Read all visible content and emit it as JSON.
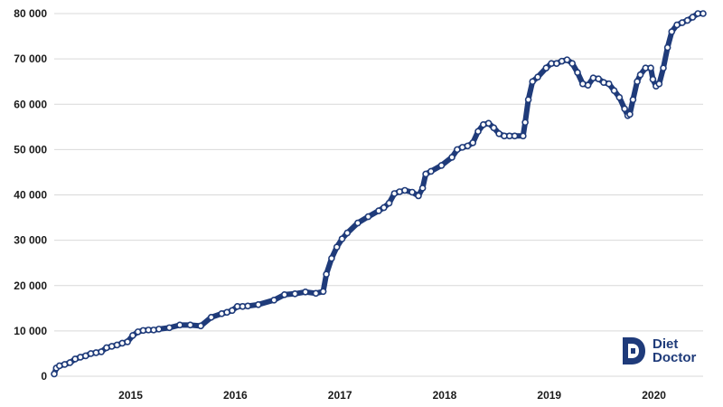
{
  "colors": {
    "series": "#1f3b7a",
    "marker_fill": "#ffffff",
    "grid": "#d9d9d9",
    "text": "#1a1a1a"
  },
  "logo": {
    "line1": "Diet",
    "line2": "Doctor",
    "icon": "diet-doctor-d-logo-icon"
  },
  "chart_data": {
    "type": "line",
    "title": "",
    "xlabel": "",
    "ylabel": "",
    "grid": "horizontal",
    "legend": "none",
    "xlim": [
      2014.3,
      2020.5
    ],
    "ylim": [
      0,
      80000
    ],
    "yticks": [
      0,
      10000,
      20000,
      30000,
      40000,
      50000,
      60000,
      70000,
      80000
    ],
    "ytick_labels": [
      "0",
      "10 000",
      "20 000",
      "30 000",
      "40 000",
      "50 000",
      "60 000",
      "70 000",
      "80 000"
    ],
    "xticks": [
      2015,
      2016,
      2017,
      2018,
      2019,
      2020
    ],
    "xtick_labels": [
      "2015",
      "2016",
      "2017",
      "2018",
      "2019",
      "2020"
    ],
    "series": [
      {
        "x": [
          2014.3,
          2014.32,
          2014.35,
          2014.4,
          2014.45,
          2014.5,
          2014.55,
          2014.6,
          2014.65,
          2014.7,
          2014.75,
          2014.8,
          2014.85,
          2014.9,
          2014.95,
          2015.0,
          2015.05,
          2015.1,
          2015.15,
          2015.2,
          2015.25,
          2015.3,
          2015.4,
          2015.5,
          2015.6,
          2015.7,
          2015.8,
          2015.9,
          2015.95,
          2016.0,
          2016.05,
          2016.1,
          2016.15,
          2016.25,
          2016.4,
          2016.5,
          2016.6,
          2016.7,
          2016.8,
          2016.87,
          2016.9,
          2016.95,
          2017.0,
          2017.05,
          2017.1,
          2017.2,
          2017.3,
          2017.4,
          2017.45,
          2017.5,
          2017.55,
          2017.6,
          2017.65,
          2017.72,
          2017.78,
          2017.82,
          2017.85,
          2017.9,
          2018.0,
          2018.1,
          2018.15,
          2018.2,
          2018.25,
          2018.3,
          2018.35,
          2018.4,
          2018.45,
          2018.5,
          2018.55,
          2018.6,
          2018.65,
          2018.7,
          2018.78,
          2018.8,
          2018.83,
          2018.87,
          2018.92,
          2019.0,
          2019.05,
          2019.1,
          2019.15,
          2019.2,
          2019.25,
          2019.3,
          2019.35,
          2019.4,
          2019.45,
          2019.5,
          2019.55,
          2019.6,
          2019.65,
          2019.7,
          2019.75,
          2019.78,
          2019.8,
          2019.83,
          2019.87,
          2019.9,
          2019.95,
          2020.0,
          2020.02,
          2020.05,
          2020.08,
          2020.12,
          2020.16,
          2020.2,
          2020.25,
          2020.3,
          2020.35,
          2020.4,
          2020.45,
          2020.5
        ],
        "y": [
          500,
          1800,
          2300,
          2600,
          3000,
          3800,
          4200,
          4500,
          5000,
          5200,
          5400,
          6300,
          6600,
          6900,
          7300,
          7600,
          9000,
          9800,
          10100,
          10200,
          10200,
          10400,
          10700,
          11300,
          11300,
          11100,
          13000,
          13800,
          14100,
          14500,
          15400,
          15400,
          15500,
          15800,
          16800,
          18000,
          18200,
          18600,
          18300,
          18700,
          22500,
          26000,
          28500,
          30300,
          31600,
          33800,
          35200,
          36500,
          37200,
          38200,
          40300,
          40700,
          41000,
          40600,
          39800,
          41500,
          44600,
          45200,
          46500,
          48300,
          50000,
          50500,
          50800,
          51500,
          54000,
          55500,
          55800,
          54800,
          53500,
          53000,
          53000,
          53000,
          53000,
          56000,
          61000,
          65000,
          66000,
          68000,
          69000,
          69000,
          69500,
          69800,
          69000,
          67000,
          64500,
          64200,
          65800,
          65600,
          64800,
          64500,
          63000,
          61500,
          59000,
          57500,
          57800,
          61000,
          65000,
          66500,
          68000,
          68000,
          65500,
          64000,
          64500,
          68000,
          72500,
          76000,
          77500,
          78000,
          78500,
          79200,
          80000,
          80000
        ]
      }
    ]
  }
}
